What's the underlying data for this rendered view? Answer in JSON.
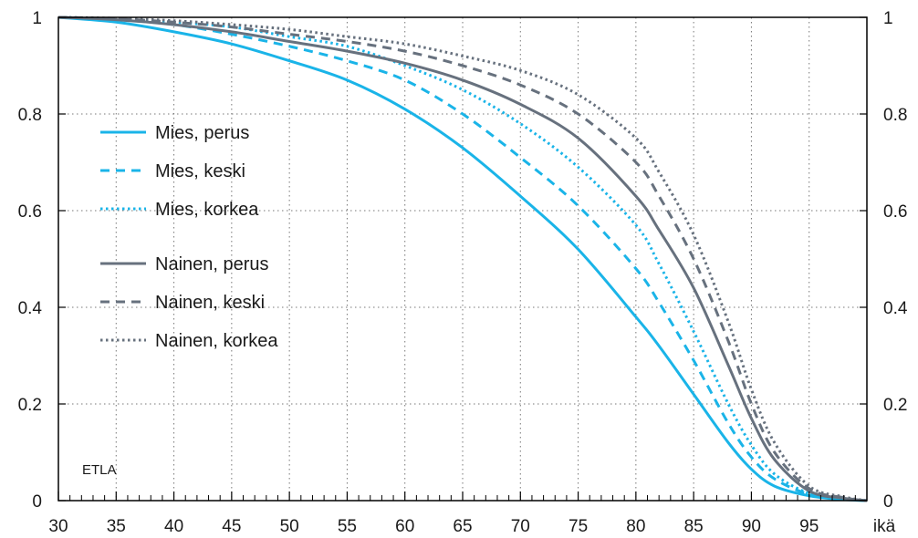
{
  "chart_data": {
    "type": "line",
    "title": "",
    "xlabel": "ikä",
    "ylabel": "",
    "xlim": [
      30,
      100
    ],
    "ylim": [
      0,
      1
    ],
    "x_ticks": [
      30,
      35,
      40,
      45,
      50,
      55,
      60,
      65,
      70,
      75,
      80,
      85,
      90,
      95
    ],
    "x_tick_labels": [
      "30",
      "35",
      "40",
      "45",
      "50",
      "55",
      "60",
      "65",
      "70",
      "75",
      "80",
      "85",
      "90",
      "95"
    ],
    "y_ticks": [
      0,
      0.2,
      0.4,
      0.6,
      0.8,
      1
    ],
    "y_tick_labels": [
      "0",
      "0.2",
      "0.4",
      "0.6",
      "0.8",
      "1"
    ],
    "grid": true,
    "grid_style": "dotted",
    "legend_position": "left",
    "watermark": "ETLA",
    "colors": {
      "mies": "#1ab4e8",
      "nainen": "#67717e",
      "axis": "#000000",
      "grid": "#777777"
    },
    "x": [
      30,
      35,
      40,
      45,
      50,
      55,
      60,
      65,
      70,
      75,
      80,
      82,
      85,
      88,
      90,
      92,
      95,
      98,
      100
    ],
    "series": [
      {
        "name": "Mies, perus",
        "group": "mies",
        "style": "solid",
        "values": [
          1.0,
          0.99,
          0.97,
          0.945,
          0.91,
          0.87,
          0.81,
          0.73,
          0.63,
          0.52,
          0.38,
          0.32,
          0.22,
          0.12,
          0.065,
          0.03,
          0.01,
          0.002,
          0.0
        ]
      },
      {
        "name": "Mies, keski",
        "group": "mies",
        "style": "dashed",
        "values": [
          1.0,
          0.995,
          0.985,
          0.965,
          0.94,
          0.91,
          0.87,
          0.8,
          0.71,
          0.61,
          0.48,
          0.41,
          0.29,
          0.16,
          0.09,
          0.045,
          0.013,
          0.003,
          0.0
        ]
      },
      {
        "name": "Mies, korkea",
        "group": "mies",
        "style": "dotted",
        "values": [
          1.0,
          0.997,
          0.99,
          0.98,
          0.96,
          0.94,
          0.9,
          0.85,
          0.78,
          0.69,
          0.57,
          0.49,
          0.35,
          0.2,
          0.115,
          0.055,
          0.015,
          0.004,
          0.0
        ]
      },
      {
        "name": "Nainen, perus",
        "group": "nainen",
        "style": "solid",
        "values": [
          1.0,
          0.995,
          0.985,
          0.97,
          0.95,
          0.93,
          0.905,
          0.87,
          0.82,
          0.75,
          0.63,
          0.56,
          0.44,
          0.28,
          0.17,
          0.085,
          0.02,
          0.005,
          0.0
        ]
      },
      {
        "name": "Nainen, keski",
        "group": "nainen",
        "style": "dashed",
        "values": [
          1.0,
          0.997,
          0.99,
          0.98,
          0.965,
          0.95,
          0.93,
          0.9,
          0.86,
          0.8,
          0.7,
          0.63,
          0.5,
          0.33,
          0.2,
          0.1,
          0.025,
          0.006,
          0.0
        ]
      },
      {
        "name": "Nainen, korkea",
        "group": "nainen",
        "style": "dotted",
        "values": [
          1.0,
          0.998,
          0.993,
          0.985,
          0.975,
          0.96,
          0.945,
          0.92,
          0.89,
          0.84,
          0.75,
          0.68,
          0.55,
          0.37,
          0.23,
          0.12,
          0.03,
          0.008,
          0.0
        ]
      }
    ]
  }
}
